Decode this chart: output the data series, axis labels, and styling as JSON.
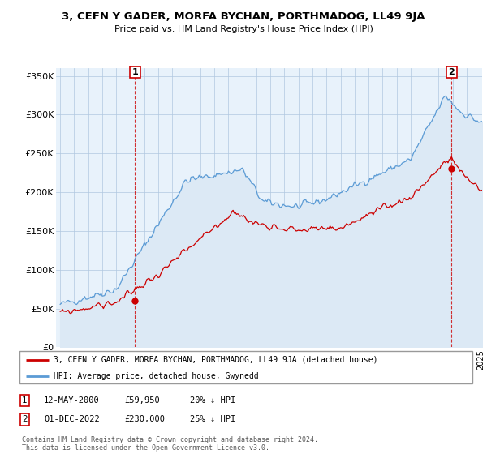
{
  "title": "3, CEFN Y GADER, MORFA BYCHAN, PORTHMADOG, LL49 9JA",
  "subtitle": "Price paid vs. HM Land Registry's House Price Index (HPI)",
  "hpi_color": "#5b9bd5",
  "hpi_fill_color": "#dce9f5",
  "price_color": "#cc0000",
  "ylim": [
    0,
    360000
  ],
  "yticks": [
    0,
    50000,
    100000,
    150000,
    200000,
    250000,
    300000,
    350000
  ],
  "ytick_labels": [
    "£0",
    "£50K",
    "£100K",
    "£150K",
    "£200K",
    "£250K",
    "£300K",
    "£350K"
  ],
  "annotation1": {
    "label": "1",
    "date": "12-MAY-2000",
    "price": "£59,950",
    "hpi": "20% ↓ HPI"
  },
  "annotation2": {
    "label": "2",
    "date": "01-DEC-2022",
    "price": "£230,000",
    "hpi": "25% ↓ HPI"
  },
  "legend_line1": "3, CEFN Y GADER, MORFA BYCHAN, PORTHMADOG, LL49 9JA (detached house)",
  "legend_line2": "HPI: Average price, detached house, Gwynedd",
  "footer": "Contains HM Land Registry data © Crown copyright and database right 2024.\nThis data is licensed under the Open Government Licence v3.0.",
  "x_start_year": 1995,
  "x_end_year": 2025,
  "bg_color": "#e8f2fb"
}
